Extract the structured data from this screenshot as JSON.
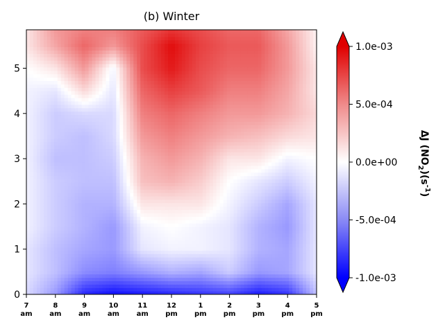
{
  "chart_data": {
    "type": "heatmap",
    "title": "(b) Winter",
    "x_ticks": [
      {
        "hour": 7,
        "label": "7",
        "ampm": "am"
      },
      {
        "hour": 8,
        "label": "8",
        "ampm": "am"
      },
      {
        "hour": 9,
        "label": "9",
        "ampm": "am"
      },
      {
        "hour": 10,
        "label": "10",
        "ampm": "am"
      },
      {
        "hour": 11,
        "label": "11",
        "ampm": "am"
      },
      {
        "hour": 12,
        "label": "12",
        "ampm": "pm"
      },
      {
        "hour": 13,
        "label": "1",
        "ampm": "pm"
      },
      {
        "hour": 14,
        "label": "2",
        "ampm": "pm"
      },
      {
        "hour": 15,
        "label": "3",
        "ampm": "pm"
      },
      {
        "hour": 16,
        "label": "4",
        "ampm": "pm"
      },
      {
        "hour": 17,
        "label": "5",
        "ampm": "pm"
      }
    ],
    "y_ticks": [
      0,
      1,
      2,
      3,
      4,
      5
    ],
    "xlim": [
      7,
      17
    ],
    "ylim": [
      0,
      5.85
    ],
    "colorbar": {
      "label_main": "ΔJ (NO",
      "label_sub": "2",
      "label_mid": ")(s",
      "label_sup": "-1",
      "label_end": ")",
      "min": -0.001,
      "max": 0.001,
      "ticks": [
        {
          "value": 0.001,
          "label": "1.0e-03"
        },
        {
          "value": 0.0005,
          "label": "5.0e-04"
        },
        {
          "value": 0.0,
          "label": "0.0e+00"
        },
        {
          "value": -0.0005,
          "label": "-5.0e-04"
        },
        {
          "value": -0.001,
          "label": "-1.0e-03"
        }
      ],
      "colors": {
        "min": "#0000ff",
        "mid": "#ffffff",
        "max": "#e00000"
      }
    },
    "x": [
      7,
      8,
      9,
      10,
      11,
      12,
      13,
      14,
      15,
      16,
      17
    ],
    "y": [
      0,
      0.5,
      1,
      1.5,
      2,
      2.5,
      3,
      3.5,
      4,
      4.5,
      5,
      5.5,
      5.85
    ],
    "z": [
      [
        -0.00015,
        -0.0004,
        -0.00085,
        -0.00095,
        -0.0009,
        -0.00085,
        -0.0008,
        -0.00075,
        -0.0009,
        -0.0008,
        -0.00025
      ],
      [
        -0.0001,
        -0.00025,
        -0.00045,
        -0.0005,
        -0.0004,
        -0.0003,
        -0.00035,
        -0.0002,
        -0.0004,
        -0.00035,
        -0.0001
      ],
      [
        -0.0001,
        -0.00025,
        -0.00035,
        -0.0004,
        -0.0001,
        -5e-05,
        -5e-05,
        -0.0001,
        -0.0003,
        -0.00035,
        -0.0001
      ],
      [
        -5e-05,
        -0.0002,
        -0.0003,
        -0.0004,
        -5e-05,
        0.0,
        -5e-05,
        -0.0001,
        -0.0003,
        -0.0004,
        -0.0001
      ],
      [
        -5e-05,
        -0.0002,
        -0.0003,
        -0.0003,
        0.0001,
        0.0001,
        0.0001,
        -5e-05,
        -0.0002,
        -0.00035,
        -0.0001
      ],
      [
        -5e-05,
        -0.0002,
        -0.00025,
        -0.00025,
        0.00025,
        0.0003,
        0.0002,
        0.0,
        -0.0001,
        -0.0002,
        -5e-05
      ],
      [
        -5e-05,
        -0.00025,
        -0.00025,
        -0.0002,
        0.0003,
        0.0004,
        0.0003,
        0.0001,
        0.0001,
        -5e-05,
        0.0
      ],
      [
        -5e-05,
        -0.0002,
        -0.00025,
        -0.00015,
        0.0004,
        0.0005,
        0.0004,
        0.0003,
        0.00025,
        0.00015,
        0.0001
      ],
      [
        -5e-05,
        -0.0002,
        -0.00015,
        -0.00015,
        0.0005,
        0.0006,
        0.0005,
        0.0004,
        0.0004,
        0.0003,
        0.00015
      ],
      [
        -5e-05,
        -0.0001,
        0.00015,
        -0.0001,
        0.0006,
        0.00075,
        0.00065,
        0.0005,
        0.0005,
        0.00035,
        0.0001
      ],
      [
        0.0,
        0.0001,
        0.0004,
        -5e-05,
        0.0007,
        0.0009,
        0.0007,
        0.0006,
        0.0006,
        0.0004,
        0.0001
      ],
      [
        0.0001,
        0.00035,
        0.0006,
        0.0004,
        0.0007,
        0.00095,
        0.00075,
        0.00065,
        0.00065,
        0.0004,
        5e-05
      ],
      [
        0.0001,
        0.0004,
        0.0005,
        0.0005,
        0.00065,
        0.0008,
        0.0007,
        0.0006,
        0.0006,
        0.00035,
        5e-05
      ]
    ]
  }
}
